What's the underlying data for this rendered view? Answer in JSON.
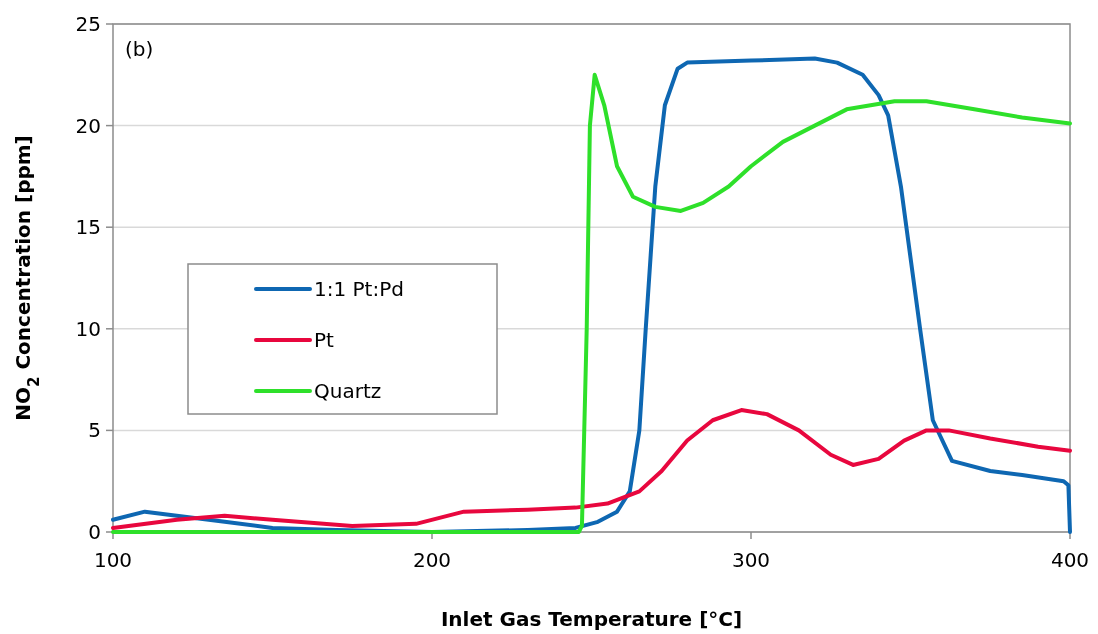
{
  "chart_data": {
    "type": "line",
    "xlabel": "Inlet Gas Temperature [°C]",
    "ylabel": "NO$_{2}$ Concentration [ppm]",
    "annotations": [
      "(b)"
    ],
    "xlim": [
      100,
      400
    ],
    "xticks": [
      100,
      200,
      300,
      400
    ],
    "ylim": [
      0,
      25
    ],
    "yticks": [
      0,
      5,
      10,
      15,
      20,
      25
    ],
    "grid": "y",
    "legend": "left",
    "marker": "none",
    "line_style": "solid",
    "series": [
      {
        "name": "1:1 Pt:Pd",
        "color": "#0e67b2",
        "x": [
          100,
          110,
          120,
          135,
          150,
          170,
          200,
          230,
          245,
          252,
          258,
          262,
          265,
          267,
          270,
          273,
          277,
          280,
          300,
          320,
          327,
          335,
          340,
          343,
          347,
          353,
          357,
          363,
          375,
          385,
          398,
          399.5,
          400
        ],
        "values": [
          0.6,
          1.0,
          0.8,
          0.5,
          0.2,
          0.1,
          0,
          0.1,
          0.2,
          0.5,
          1.0,
          2,
          5,
          10,
          17,
          21,
          22.8,
          23.1,
          23.2,
          23.3,
          23.1,
          22.5,
          21.5,
          20.5,
          17,
          10,
          5.5,
          3.5,
          3.0,
          2.8,
          2.5,
          2.3,
          0
        ]
      },
      {
        "name": "Pt",
        "color": "#e8073e",
        "x": [
          100,
          120,
          135,
          150,
          175,
          195,
          210,
          230,
          245,
          255,
          265,
          272,
          280,
          288,
          297,
          305,
          315,
          325,
          332,
          340,
          348,
          355,
          362,
          375,
          390,
          400
        ],
        "values": [
          0.2,
          0.6,
          0.8,
          0.6,
          0.3,
          0.4,
          1.0,
          1.1,
          1.2,
          1.4,
          2.0,
          3.0,
          4.5,
          5.5,
          6.0,
          5.8,
          5.0,
          3.8,
          3.3,
          3.6,
          4.5,
          5.0,
          5.0,
          4.6,
          4.2,
          4.0
        ]
      },
      {
        "name": "Quartz",
        "color": "#2ee02a",
        "x": [
          100,
          246,
          247,
          248.5,
          249.5,
          251,
          254,
          258,
          263,
          270,
          278,
          285,
          293,
          300,
          310,
          320,
          330,
          345,
          355,
          370,
          385,
          395,
          400
        ],
        "values": [
          0,
          0,
          0.3,
          10,
          20,
          22.5,
          21,
          18,
          16.5,
          16,
          15.8,
          16.2,
          17,
          18,
          19.2,
          20,
          20.8,
          21.2,
          21.2,
          20.8,
          20.4,
          20.2,
          20.1
        ]
      }
    ]
  }
}
